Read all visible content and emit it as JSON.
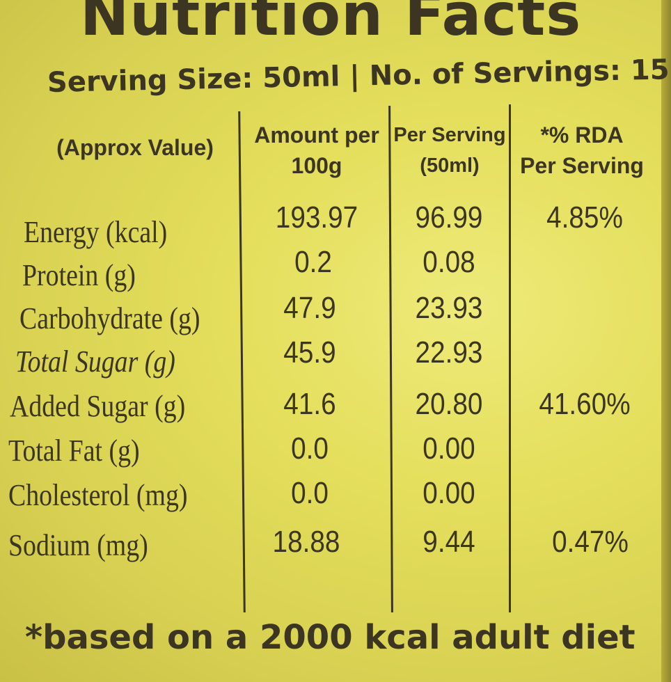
{
  "title": "Nutrition Facts",
  "serving_line": "Serving Size: 50ml  |  No. of Servings: 15",
  "headers": {
    "col0": "(Approx Value)",
    "col1_line1": "Amount per",
    "col1_line2": "100g",
    "col2_line1": "Per Serving",
    "col2_line2": "(50ml)",
    "col3_line1": "*% RDA",
    "col3_line2": "Per Serving"
  },
  "rows": [
    {
      "label": "Energy (kcal)",
      "per100": "193.97",
      "perServing": "96.99",
      "rda": "4.85%"
    },
    {
      "label": "Protein (g)",
      "per100": "0.2",
      "perServing": "0.08",
      "rda": ""
    },
    {
      "label": "Carbohydrate (g)",
      "per100": "47.9",
      "perServing": "23.93",
      "rda": ""
    },
    {
      "label": "Total Sugar (g)",
      "per100": "45.9",
      "perServing": "22.93",
      "rda": ""
    },
    {
      "label": "Added Sugar (g)",
      "per100": "41.6",
      "perServing": "20.80",
      "rda": "41.60%"
    },
    {
      "label": "Total Fat (g)",
      "per100": "0.0",
      "perServing": "0.00",
      "rda": ""
    },
    {
      "label": "Cholesterol (mg)",
      "per100": "0.0",
      "perServing": "0.00",
      "rda": ""
    },
    {
      "label": "Sodium (mg)",
      "per100": "18.88",
      "perServing": "9.44",
      "rda": "0.47%"
    }
  ],
  "footnote": "*based on a 2000 kcal adult diet",
  "colors": {
    "label_bg": "#e4df5c",
    "ink": "#3b3522"
  }
}
